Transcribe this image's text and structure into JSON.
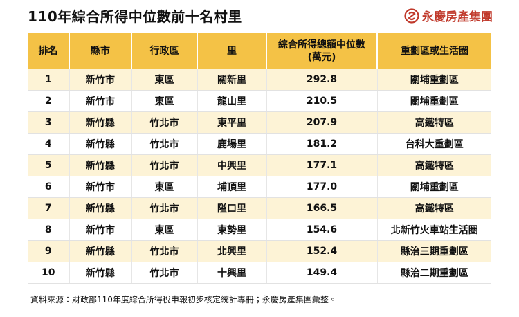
{
  "header": {
    "title": "110年綜合所得中位數前十名村里",
    "logo": "永慶房產集團"
  },
  "table": {
    "headers": [
      "排名",
      "縣市",
      "行政區",
      "里",
      "綜合所得總額中位數\n(萬元)",
      "重劃區或生活圈"
    ],
    "rows": [
      [
        "1",
        "新竹市",
        "東區",
        "關新里",
        "292.8",
        "關埔重劃區"
      ],
      [
        "2",
        "新竹市",
        "東區",
        "龍山里",
        "210.5",
        "關埔重劃區"
      ],
      [
        "3",
        "新竹縣",
        "竹北市",
        "東平里",
        "207.9",
        "高鐵特區"
      ],
      [
        "4",
        "新竹縣",
        "竹北市",
        "鹿場里",
        "181.2",
        "台科大重劃區"
      ],
      [
        "5",
        "新竹縣",
        "竹北市",
        "中興里",
        "177.1",
        "高鐵特區"
      ],
      [
        "6",
        "新竹市",
        "東區",
        "埔頂里",
        "177.0",
        "關埔重劃區"
      ],
      [
        "7",
        "新竹縣",
        "竹北市",
        "隘口里",
        "166.5",
        "高鐵特區"
      ],
      [
        "8",
        "新竹市",
        "東區",
        "東勢里",
        "154.6",
        "北新竹火車站生活圈"
      ],
      [
        "9",
        "新竹縣",
        "竹北市",
        "北興里",
        "152.4",
        "縣治三期重劃區"
      ],
      [
        "10",
        "新竹縣",
        "竹北市",
        "十興里",
        "149.4",
        "縣治二期重劃區"
      ]
    ]
  },
  "footer": {
    "source": "資料來源：財政部110年度綜合所得稅申報初步核定統計專冊；永慶房產集團彙整。"
  }
}
